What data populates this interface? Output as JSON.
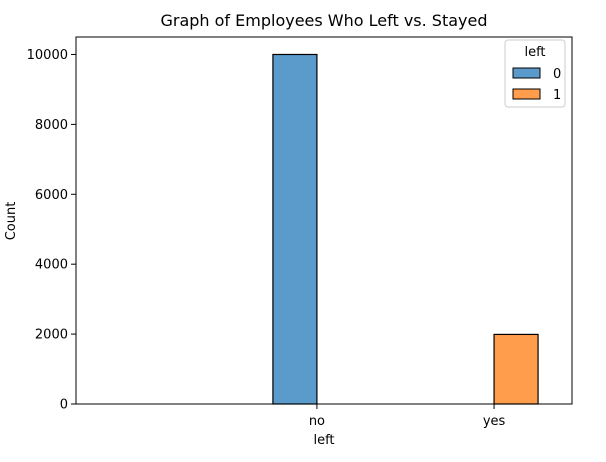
{
  "chart_data": {
    "type": "bar",
    "title": "Graph of Employees Who Left vs. Stayed",
    "xlabel": "left",
    "ylabel": "Count",
    "categories": [
      "no",
      "yes"
    ],
    "ylim": [
      0,
      10500
    ],
    "yticks": [
      0,
      2000,
      4000,
      6000,
      8000,
      10000
    ],
    "series": [
      {
        "name": "0",
        "values": [
          10000,
          0
        ],
        "color": "#5b9bcb"
      },
      {
        "name": "1",
        "values": [
          0,
          1991
        ],
        "color": "#ff9d4d"
      }
    ],
    "legend": {
      "title": "left",
      "position": "top-right"
    },
    "grid": false
  }
}
